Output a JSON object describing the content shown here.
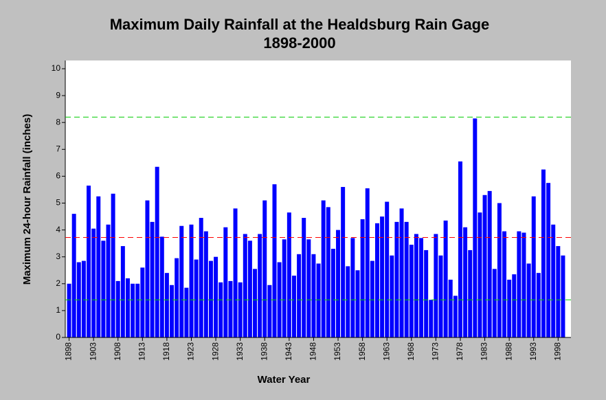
{
  "chart_data": {
    "type": "bar",
    "title": "Maximum Daily Rainfall at the Healdsburg Rain Gage",
    "subtitle": "1898-2000",
    "x_label": "Water Year",
    "y_label": "Maximum 24-hour Rainfall (inches)",
    "categories": [
      "1898",
      null,
      null,
      null,
      null,
      "1903",
      null,
      null,
      null,
      null,
      "1908",
      null,
      null,
      null,
      null,
      "1913",
      null,
      null,
      null,
      null,
      "1918",
      null,
      null,
      null,
      null,
      "1923",
      null,
      null,
      null,
      null,
      "1928",
      null,
      null,
      null,
      null,
      "1933",
      null,
      null,
      null,
      null,
      "1938",
      null,
      null,
      null,
      null,
      "1943",
      null,
      null,
      null,
      null,
      "1948",
      null,
      null,
      null,
      null,
      "1953",
      null,
      null,
      null,
      null,
      "1958",
      null,
      null,
      null,
      null,
      "1963",
      null,
      null,
      null,
      null,
      "1968",
      null,
      null,
      null,
      null,
      "1973",
      null,
      null,
      null,
      null,
      "1978",
      null,
      null,
      null,
      null,
      "1983",
      null,
      null,
      null,
      null,
      "1988",
      null,
      null,
      null,
      null,
      "1993",
      null,
      null,
      null,
      null,
      "1998",
      null
    ],
    "values": [
      2.0,
      4.6,
      2.8,
      2.85,
      5.65,
      4.05,
      5.25,
      3.6,
      4.2,
      5.35,
      2.1,
      3.4,
      2.2,
      2.0,
      2.0,
      2.6,
      5.1,
      4.3,
      6.35,
      3.75,
      2.4,
      1.95,
      2.95,
      4.15,
      1.85,
      4.2,
      2.9,
      4.45,
      3.95,
      2.85,
      3.0,
      2.05,
      4.1,
      2.1,
      4.8,
      2.05,
      3.85,
      3.6,
      2.55,
      3.85,
      5.1,
      1.95,
      5.7,
      2.8,
      3.65,
      4.65,
      2.3,
      3.1,
      4.45,
      3.65,
      3.1,
      2.75,
      5.1,
      4.85,
      3.3,
      4.0,
      5.6,
      2.65,
      3.7,
      2.5,
      4.4,
      5.55,
      2.85,
      4.25,
      4.5,
      5.05,
      3.05,
      4.3,
      4.8,
      4.3,
      3.45,
      3.85,
      3.7,
      3.25,
      1.4,
      3.85,
      3.05,
      4.35,
      2.15,
      1.55,
      6.55,
      4.1,
      3.25,
      8.15,
      4.65,
      5.3,
      5.45,
      2.55,
      5.0,
      3.95,
      2.15,
      2.35,
      3.95,
      3.9,
      2.75,
      5.25,
      2.4,
      6.25,
      5.75,
      4.2,
      3.4,
      3.05
    ],
    "color": "#0000ff",
    "ylim": [
      0,
      10
    ],
    "yticks": [
      0,
      1,
      2,
      3,
      4,
      5,
      6,
      7,
      8,
      9,
      10
    ],
    "reference_lines": [
      {
        "value": 8.2,
        "color": "#00cc00"
      },
      {
        "value": 3.72,
        "color": "#ff0000"
      },
      {
        "value": 1.4,
        "color": "#00cc00"
      }
    ]
  }
}
